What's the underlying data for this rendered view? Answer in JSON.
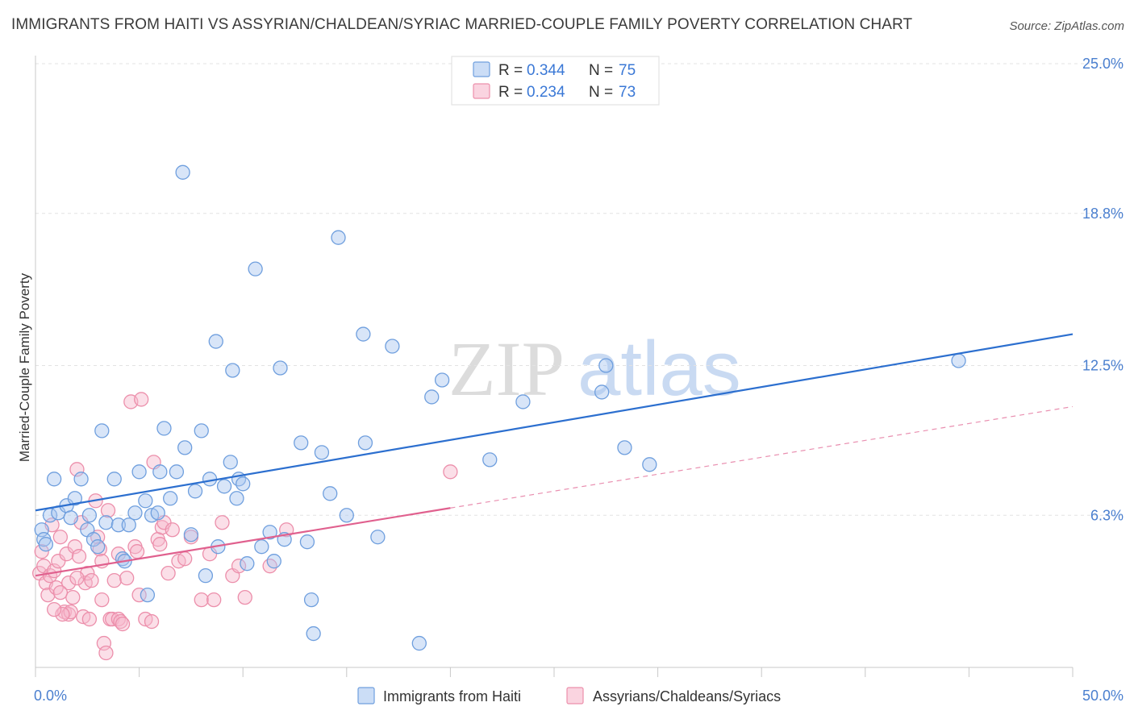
{
  "title": "IMMIGRANTS FROM HAITI VS ASSYRIAN/CHALDEAN/SYRIAC MARRIED-COUPLE FAMILY POVERTY CORRELATION CHART",
  "source": "Source: ZipAtlas.com",
  "watermark": {
    "zip": "ZIP",
    "atlas": "atlas"
  },
  "legend": {
    "rows": [
      {
        "r_label": "R =",
        "r_value": "0.344",
        "n_label": "N =",
        "n_value": "75",
        "color": "#a8c6f0"
      },
      {
        "r_label": "R =",
        "r_value": "0.234",
        "n_label": "N =",
        "n_value": "73",
        "color": "#f7b8cb"
      }
    ]
  },
  "colors": {
    "blue_fill": "#a8c6f0",
    "blue_stroke": "#6f9fde",
    "blue_line": "#2c6fcf",
    "pink_fill": "#f7b8cb",
    "pink_stroke": "#ec8fab",
    "pink_line": "#e0608e",
    "grid": "#e3e3e3",
    "tick_label": "#4a7fcf"
  },
  "chart_data": {
    "type": "scatter",
    "title": "IMMIGRANTS FROM HAITI VS ASSYRIAN/CHALDEAN/SYRIAC MARRIED-COUPLE FAMILY POVERTY CORRELATION CHART",
    "xlabel": "",
    "ylabel": "Married-Couple Family Poverty",
    "xlim": [
      0,
      50
    ],
    "ylim": [
      0,
      25
    ],
    "x_tick_labels": [
      "0.0%",
      "50.0%"
    ],
    "y_ticks": [
      6.3,
      12.5,
      18.8,
      25.0
    ],
    "y_tick_labels": [
      "6.3%",
      "12.5%",
      "18.8%",
      "25.0%"
    ],
    "grid": true,
    "legend_position": "top-center",
    "series": [
      {
        "name": "Immigrants from Haiti",
        "r": 0.344,
        "n": 75,
        "trend": {
          "x": [
            0,
            50
          ],
          "y": [
            6.5,
            13.8
          ],
          "dashed_from": null
        },
        "points": [
          [
            0.3,
            5.7
          ],
          [
            0.4,
            5.3
          ],
          [
            0.5,
            5.1
          ],
          [
            0.7,
            6.3
          ],
          [
            0.9,
            7.8
          ],
          [
            1.1,
            6.4
          ],
          [
            1.5,
            6.7
          ],
          [
            1.7,
            6.2
          ],
          [
            1.9,
            7.0
          ],
          [
            2.2,
            7.8
          ],
          [
            2.5,
            5.7
          ],
          [
            2.6,
            6.3
          ],
          [
            2.8,
            5.3
          ],
          [
            3.0,
            5.0
          ],
          [
            3.2,
            9.8
          ],
          [
            3.4,
            6.0
          ],
          [
            3.8,
            7.8
          ],
          [
            4.0,
            5.9
          ],
          [
            4.2,
            4.5
          ],
          [
            4.3,
            4.4
          ],
          [
            4.5,
            5.9
          ],
          [
            4.8,
            6.4
          ],
          [
            5.0,
            8.1
          ],
          [
            5.3,
            6.9
          ],
          [
            5.4,
            3.0
          ],
          [
            5.6,
            6.3
          ],
          [
            5.9,
            6.4
          ],
          [
            6.0,
            8.1
          ],
          [
            6.2,
            9.9
          ],
          [
            6.5,
            7.0
          ],
          [
            6.8,
            8.1
          ],
          [
            7.1,
            20.5
          ],
          [
            7.2,
            9.1
          ],
          [
            7.5,
            5.5
          ],
          [
            7.7,
            7.3
          ],
          [
            8.0,
            9.8
          ],
          [
            8.2,
            3.8
          ],
          [
            8.4,
            7.8
          ],
          [
            8.7,
            13.5
          ],
          [
            8.8,
            5.0
          ],
          [
            9.1,
            7.5
          ],
          [
            9.4,
            8.5
          ],
          [
            9.5,
            12.3
          ],
          [
            9.7,
            7.0
          ],
          [
            9.8,
            7.8
          ],
          [
            10.0,
            7.6
          ],
          [
            10.2,
            4.3
          ],
          [
            10.6,
            16.5
          ],
          [
            10.9,
            5.0
          ],
          [
            11.3,
            5.6
          ],
          [
            11.5,
            4.4
          ],
          [
            11.8,
            12.4
          ],
          [
            12.0,
            5.3
          ],
          [
            12.8,
            9.3
          ],
          [
            13.1,
            5.2
          ],
          [
            13.3,
            2.8
          ],
          [
            13.4,
            1.4
          ],
          [
            13.8,
            8.9
          ],
          [
            14.2,
            7.2
          ],
          [
            14.6,
            17.8
          ],
          [
            15.0,
            6.3
          ],
          [
            15.8,
            13.8
          ],
          [
            15.9,
            9.3
          ],
          [
            16.5,
            5.4
          ],
          [
            17.2,
            13.3
          ],
          [
            18.5,
            1.0
          ],
          [
            19.1,
            11.2
          ],
          [
            19.6,
            11.9
          ],
          [
            21.9,
            8.6
          ],
          [
            23.5,
            11.0
          ],
          [
            27.3,
            11.4
          ],
          [
            27.5,
            12.5
          ],
          [
            28.4,
            9.1
          ],
          [
            29.6,
            8.4
          ],
          [
            44.5,
            12.7
          ]
        ]
      },
      {
        "name": "Assyrians/Chaldeans/Syriacs",
        "r": 0.234,
        "n": 73,
        "trend": {
          "x": [
            0,
            50
          ],
          "y": [
            3.8,
            10.8
          ],
          "dashed_from": 20
        },
        "points": [
          [
            0.2,
            3.9
          ],
          [
            0.3,
            4.8
          ],
          [
            0.4,
            4.2
          ],
          [
            0.5,
            3.5
          ],
          [
            0.6,
            3.0
          ],
          [
            0.7,
            3.8
          ],
          [
            0.8,
            5.9
          ],
          [
            0.9,
            4.0
          ],
          [
            1.0,
            3.3
          ],
          [
            1.1,
            4.4
          ],
          [
            1.2,
            5.4
          ],
          [
            1.4,
            2.3
          ],
          [
            1.5,
            4.7
          ],
          [
            1.6,
            2.2
          ],
          [
            1.7,
            2.3
          ],
          [
            1.8,
            2.9
          ],
          [
            1.9,
            5.0
          ],
          [
            2.0,
            8.2
          ],
          [
            2.1,
            4.6
          ],
          [
            2.2,
            6.0
          ],
          [
            2.3,
            2.1
          ],
          [
            2.4,
            3.5
          ],
          [
            2.5,
            3.9
          ],
          [
            2.7,
            3.6
          ],
          [
            2.9,
            6.9
          ],
          [
            3.0,
            5.4
          ],
          [
            3.1,
            4.9
          ],
          [
            3.2,
            4.4
          ],
          [
            3.3,
            1.0
          ],
          [
            3.4,
            0.6
          ],
          [
            3.5,
            6.5
          ],
          [
            3.6,
            2.0
          ],
          [
            3.7,
            2.0
          ],
          [
            3.8,
            3.6
          ],
          [
            4.0,
            2.0
          ],
          [
            4.1,
            1.9
          ],
          [
            4.2,
            1.8
          ],
          [
            4.4,
            3.7
          ],
          [
            4.6,
            11.0
          ],
          [
            4.8,
            5.0
          ],
          [
            4.9,
            4.8
          ],
          [
            5.1,
            11.1
          ],
          [
            5.3,
            2.0
          ],
          [
            5.6,
            1.9
          ],
          [
            5.7,
            8.5
          ],
          [
            5.9,
            5.3
          ],
          [
            6.0,
            5.1
          ],
          [
            6.1,
            5.8
          ],
          [
            6.2,
            6.0
          ],
          [
            6.4,
            3.9
          ],
          [
            6.6,
            5.7
          ],
          [
            6.9,
            4.4
          ],
          [
            7.2,
            4.5
          ],
          [
            7.5,
            5.4
          ],
          [
            8.0,
            2.8
          ],
          [
            8.4,
            4.7
          ],
          [
            8.6,
            2.8
          ],
          [
            9.0,
            6.0
          ],
          [
            9.5,
            3.8
          ],
          [
            9.8,
            4.2
          ],
          [
            10.1,
            2.9
          ],
          [
            11.3,
            4.2
          ],
          [
            12.1,
            5.7
          ],
          [
            20.0,
            8.1
          ],
          [
            1.3,
            2.2
          ],
          [
            1.6,
            3.5
          ],
          [
            2.6,
            2.0
          ],
          [
            3.2,
            2.8
          ],
          [
            4.0,
            4.7
          ],
          [
            5.0,
            3.0
          ],
          [
            0.9,
            2.4
          ],
          [
            1.2,
            3.1
          ],
          [
            2.0,
            3.7
          ]
        ]
      }
    ]
  },
  "bottom_legend": [
    "Immigrants from Haiti",
    "Assyrians/Chaldeans/Syriacs"
  ]
}
